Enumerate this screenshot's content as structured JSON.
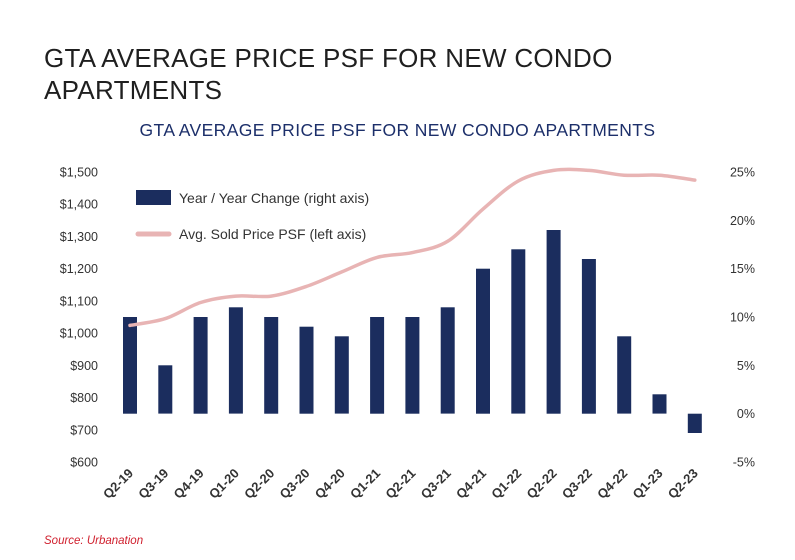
{
  "page": {
    "title": "GTA AVERAGE PRICE PSF FOR NEW CONDO APARTMENTS",
    "source": "Source: Urbanation"
  },
  "chart_data": {
    "type": "bar+line",
    "title": "GTA AVERAGE PRICE PSF FOR NEW CONDO APARTMENTS",
    "categories": [
      "Q2-19",
      "Q3-19",
      "Q4-19",
      "Q1-20",
      "Q2-20",
      "Q3-20",
      "Q4-20",
      "Q1-21",
      "Q2-21",
      "Q3-21",
      "Q4-21",
      "Q1-22",
      "Q2-22",
      "Q3-22",
      "Q4-22",
      "Q1-23",
      "Q2-23"
    ],
    "series": [
      {
        "name": "Year / Year Change (right axis)",
        "kind": "bar",
        "axis": "right",
        "color": "#1b2d5e",
        "values": [
          10,
          5,
          10,
          11,
          10,
          9,
          8,
          10,
          10,
          11,
          15,
          17,
          19,
          16,
          8,
          2,
          -2
        ]
      },
      {
        "name": "Avg. Sold Price PSF (left axis)",
        "kind": "line",
        "axis": "left",
        "color": "#e8b4b4",
        "values": [
          1024,
          1045,
          1095,
          1115,
          1115,
          1145,
          1190,
          1235,
          1250,
          1285,
          1385,
          1472,
          1505,
          1505,
          1490,
          1490,
          1475
        ]
      }
    ],
    "left_axis": {
      "min": 600,
      "max": 1500,
      "step": 100,
      "tick_labels": [
        "$600",
        "$700",
        "$800",
        "$900",
        "$1,000",
        "$1,100",
        "$1,200",
        "$1,300",
        "$1,400",
        "$1,500"
      ]
    },
    "right_axis": {
      "min": -5,
      "max": 25,
      "step": 5,
      "tick_labels": [
        "-5%",
        "0%",
        "5%",
        "10%",
        "15%",
        "20%",
        "25%"
      ]
    },
    "legend_position": "top-left",
    "grid": false
  }
}
